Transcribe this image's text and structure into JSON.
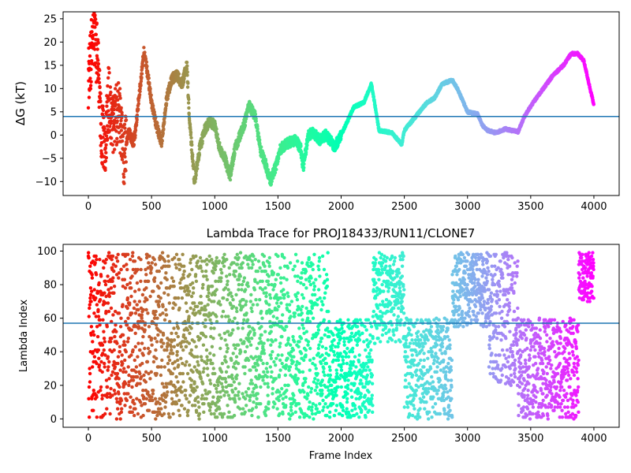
{
  "chart_data": [
    {
      "type": "scatter",
      "title": "",
      "xlabel": "",
      "ylabel": "ΔG (kT)",
      "xlim": [
        -200,
        4200
      ],
      "ylim": [
        -13,
        26.5
      ],
      "xticks": [
        "0",
        "500",
        "1000",
        "1500",
        "2000",
        "2500",
        "3000",
        "3500",
        "4000"
      ],
      "yticks": [
        "−10",
        "−5",
        "0",
        "5",
        "10",
        "15",
        "20",
        "25"
      ],
      "reference_line": 4,
      "reference_color": "#1f77b4",
      "colormap": "rainbow (red at frame 0 → violet at frame 4000)",
      "n_points": 4000,
      "profile_keypoints": [
        [
          0,
          12
        ],
        [
          40,
          22
        ],
        [
          80,
          15
        ],
        [
          100,
          2
        ],
        [
          130,
          -3
        ],
        [
          160,
          8
        ],
        [
          200,
          2
        ],
        [
          240,
          6
        ],
        [
          280,
          -4
        ],
        [
          320,
          1
        ],
        [
          360,
          -2
        ],
        [
          400,
          8
        ],
        [
          440,
          18
        ],
        [
          470,
          13
        ],
        [
          500,
          7
        ],
        [
          540,
          2
        ],
        [
          580,
          -2
        ],
        [
          620,
          8
        ],
        [
          660,
          12
        ],
        [
          700,
          13
        ],
        [
          740,
          11
        ],
        [
          780,
          15
        ],
        [
          800,
          3
        ],
        [
          840,
          -10
        ],
        [
          880,
          -3
        ],
        [
          920,
          1
        ],
        [
          960,
          3
        ],
        [
          1000,
          2
        ],
        [
          1040,
          -3
        ],
        [
          1080,
          -5
        ],
        [
          1120,
          -9
        ],
        [
          1160,
          -3
        ],
        [
          1200,
          0
        ],
        [
          1240,
          3
        ],
        [
          1270,
          6.5
        ],
        [
          1320,
          4
        ],
        [
          1360,
          -3
        ],
        [
          1400,
          -6
        ],
        [
          1440,
          -10
        ],
        [
          1480,
          -7
        ],
        [
          1520,
          -3
        ],
        [
          1560,
          -2
        ],
        [
          1600,
          -1.5
        ],
        [
          1640,
          -1
        ],
        [
          1680,
          -3
        ],
        [
          1700,
          -7
        ],
        [
          1740,
          0
        ],
        [
          1780,
          0.5
        ],
        [
          1830,
          -1
        ],
        [
          1880,
          0
        ],
        [
          1950,
          -2.5
        ],
        [
          2000,
          0
        ],
        [
          2050,
          3
        ],
        [
          2100,
          6
        ],
        [
          2180,
          7
        ],
        [
          2240,
          11
        ],
        [
          2300,
          1
        ],
        [
          2400,
          0.5
        ],
        [
          2480,
          -2
        ],
        [
          2500,
          1
        ],
        [
          2560,
          3
        ],
        [
          2620,
          5
        ],
        [
          2680,
          7
        ],
        [
          2740,
          8
        ],
        [
          2800,
          11
        ],
        [
          2880,
          11.8
        ],
        [
          2920,
          10
        ],
        [
          3000,
          5
        ],
        [
          3080,
          4.5
        ],
        [
          3120,
          2
        ],
        [
          3160,
          1
        ],
        [
          3220,
          0.5
        ],
        [
          3300,
          1.3
        ],
        [
          3400,
          0.7
        ],
        [
          3450,
          4
        ],
        [
          3520,
          7
        ],
        [
          3600,
          10
        ],
        [
          3680,
          13
        ],
        [
          3760,
          15
        ],
        [
          3820,
          17.5
        ],
        [
          3870,
          17.5
        ],
        [
          3920,
          16
        ],
        [
          3970,
          10
        ],
        [
          4000,
          6.5
        ]
      ]
    },
    {
      "type": "scatter",
      "title": "Lambda Trace for PROJ18433/RUN11/CLONE7",
      "xlabel": "Frame Index",
      "ylabel": "Lambda Index",
      "xlim": [
        -200,
        4200
      ],
      "ylim": [
        -5,
        104
      ],
      "xticks": [
        "0",
        "500",
        "1000",
        "1500",
        "2000",
        "2500",
        "3000",
        "3500",
        "4000"
      ],
      "yticks": [
        "0",
        "20",
        "40",
        "60",
        "80",
        "100"
      ],
      "reference_line": 57,
      "reference_color": "#1f77b4",
      "colormap": "rainbow (red at frame 0 → violet at frame 4000)",
      "n_points": 4000,
      "occupied_ranges": [
        {
          "frames": [
            0,
            1900
          ],
          "lambda": [
            0,
            99
          ]
        },
        {
          "frames": [
            1900,
            2250
          ],
          "lambda": [
            0,
            60
          ]
        },
        {
          "frames": [
            2250,
            2500
          ],
          "lambda": [
            45,
            99
          ]
        },
        {
          "frames": [
            2500,
            2880
          ],
          "lambda": [
            0,
            60
          ]
        },
        {
          "frames": [
            2880,
            3170
          ],
          "lambda": [
            55,
            99
          ]
        },
        {
          "frames": [
            3170,
            3400
          ],
          "lambda": [
            20,
            99
          ]
        },
        {
          "frames": [
            3400,
            3880
          ],
          "lambda": [
            0,
            60
          ]
        },
        {
          "frames": [
            3880,
            4000
          ],
          "lambda": [
            70,
            99
          ]
        }
      ]
    }
  ]
}
